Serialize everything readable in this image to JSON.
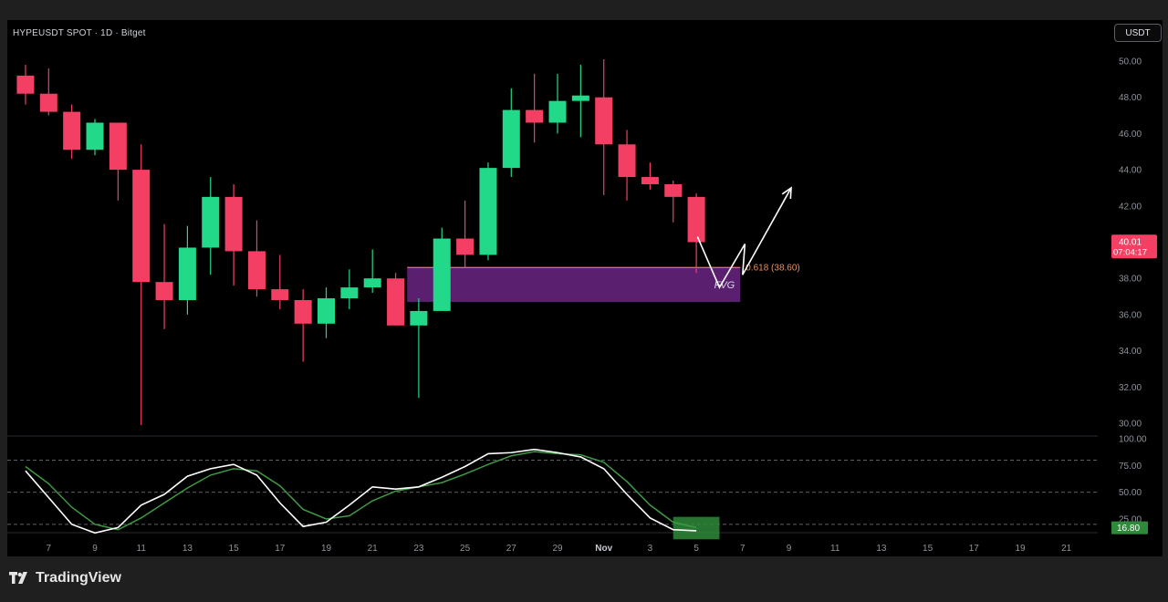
{
  "header": {
    "symbol": "HYPEUSDT SPOT · 1D · Bitget",
    "currency": "USDT"
  },
  "brand": {
    "name": "TradingView",
    "logo_icon": "tradingview-logo-icon"
  },
  "colors": {
    "up": "#22d989",
    "down": "#f23f63",
    "fvg_fill": "#5a1f6e",
    "fib_line": "#f0606e",
    "fib_label": "#e89060",
    "stoch_k": "#ffffff",
    "stoch_d": "#3e9a44",
    "stoch_box": "#2e8a3a"
  },
  "chart_data": {
    "type": "candlestick",
    "price_axis": {
      "ticks": [
        "50.00",
        "48.00",
        "46.00",
        "44.00",
        "42.00",
        "40.00",
        "38.00",
        "36.00",
        "34.00",
        "32.00",
        "30.00"
      ],
      "range": [
        29.3,
        51.2
      ]
    },
    "time_axis": {
      "ticks": [
        "7",
        "9",
        "11",
        "13",
        "15",
        "17",
        "19",
        "21",
        "23",
        "25",
        "27",
        "29",
        "Nov",
        "3",
        "5",
        "7",
        "9",
        "11",
        "13",
        "15",
        "17",
        "19",
        "21"
      ]
    },
    "candles": [
      {
        "day": 6,
        "o": 49.2,
        "h": 49.8,
        "l": 47.6,
        "c": 48.2
      },
      {
        "day": 7,
        "o": 48.2,
        "h": 49.6,
        "l": 47.0,
        "c": 47.2
      },
      {
        "day": 8,
        "o": 47.2,
        "h": 47.6,
        "l": 44.6,
        "c": 45.1
      },
      {
        "day": 9,
        "o": 45.1,
        "h": 46.8,
        "l": 44.8,
        "c": 46.6
      },
      {
        "day": 10,
        "o": 46.6,
        "h": 46.6,
        "l": 42.3,
        "c": 44.0
      },
      {
        "day": 11,
        "o": 44.0,
        "h": 45.4,
        "l": 29.9,
        "c": 37.8
      },
      {
        "day": 12,
        "o": 37.8,
        "h": 41.0,
        "l": 35.2,
        "c": 36.8
      },
      {
        "day": 13,
        "o": 36.8,
        "h": 40.9,
        "l": 36.0,
        "c": 39.7
      },
      {
        "day": 14,
        "o": 39.7,
        "h": 43.6,
        "l": 38.2,
        "c": 42.5
      },
      {
        "day": 15,
        "o": 42.5,
        "h": 43.2,
        "l": 37.6,
        "c": 39.5
      },
      {
        "day": 16,
        "o": 39.5,
        "h": 41.2,
        "l": 37.0,
        "c": 37.4
      },
      {
        "day": 17,
        "o": 37.4,
        "h": 39.3,
        "l": 36.3,
        "c": 36.8
      },
      {
        "day": 18,
        "o": 36.8,
        "h": 37.4,
        "l": 33.4,
        "c": 35.5
      },
      {
        "day": 19,
        "o": 35.5,
        "h": 37.5,
        "l": 34.7,
        "c": 36.9
      },
      {
        "day": 20,
        "o": 36.9,
        "h": 38.5,
        "l": 36.3,
        "c": 37.5
      },
      {
        "day": 21,
        "o": 37.5,
        "h": 39.6,
        "l": 37.2,
        "c": 38.0
      },
      {
        "day": 22,
        "o": 38.0,
        "h": 38.3,
        "l": 35.4,
        "c": 35.4
      },
      {
        "day": 23,
        "o": 35.4,
        "h": 36.9,
        "l": 31.4,
        "c": 36.2
      },
      {
        "day": 24,
        "o": 36.2,
        "h": 40.8,
        "l": 36.2,
        "c": 40.2
      },
      {
        "day": 25,
        "o": 40.2,
        "h": 42.3,
        "l": 38.6,
        "c": 39.3
      },
      {
        "day": 26,
        "o": 39.3,
        "h": 44.4,
        "l": 39.0,
        "c": 44.1
      },
      {
        "day": 27,
        "o": 44.1,
        "h": 48.5,
        "l": 43.6,
        "c": 47.3
      },
      {
        "day": 28,
        "o": 47.3,
        "h": 49.3,
        "l": 45.5,
        "c": 46.6
      },
      {
        "day": 29,
        "o": 46.6,
        "h": 49.3,
        "l": 46.0,
        "c": 47.8
      },
      {
        "day": 30,
        "o": 47.8,
        "h": 49.8,
        "l": 45.8,
        "c": 48.1
      },
      {
        "day": 31,
        "o": 48.0,
        "h": 50.1,
        "l": 42.6,
        "c": 45.4
      },
      {
        "day": 32,
        "o": 45.4,
        "h": 46.2,
        "l": 42.3,
        "c": 43.6
      },
      {
        "day": 33,
        "o": 43.6,
        "h": 44.4,
        "l": 42.9,
        "c": 43.2
      },
      {
        "day": 34,
        "o": 43.2,
        "h": 43.4,
        "l": 41.1,
        "c": 42.5
      },
      {
        "day": 35,
        "o": 42.5,
        "h": 42.7,
        "l": 38.3,
        "c": 40.0
      }
    ],
    "fvg": {
      "label": "FVG",
      "top": 38.6,
      "bottom": 36.7,
      "from_day": 22.5,
      "to_day": 36.9
    },
    "fib": {
      "label": "0.618 (38.60)",
      "value": 38.6
    },
    "last_price": {
      "value": "40.01",
      "countdown": "07:04:17"
    },
    "projection": [
      {
        "day": 35.05,
        "price": 40.3
      },
      {
        "day": 36.0,
        "price": 37.5
      },
      {
        "day": 37.1,
        "price": 39.9
      },
      {
        "day": 37.0,
        "price": 38.2
      },
      {
        "day": 39.1,
        "price": 43.0
      }
    ],
    "oscillator": {
      "ticks": [
        "100.00",
        "75.00",
        "50.00",
        "25.00"
      ],
      "range": [
        0,
        100
      ],
      "dashed_levels": [
        80,
        50,
        20
      ],
      "k": [
        [
          6,
          70
        ],
        [
          7,
          45
        ],
        [
          8,
          20
        ],
        [
          9,
          12
        ],
        [
          10,
          17
        ],
        [
          11,
          38
        ],
        [
          12,
          48
        ],
        [
          13,
          65
        ],
        [
          14,
          72
        ],
        [
          15,
          76
        ],
        [
          16,
          66
        ],
        [
          17,
          40
        ],
        [
          18,
          18
        ],
        [
          19,
          22
        ],
        [
          20,
          38
        ],
        [
          21,
          55
        ],
        [
          22,
          53
        ],
        [
          23,
          55
        ],
        [
          24,
          64
        ],
        [
          25,
          74
        ],
        [
          26,
          86
        ],
        [
          27,
          87
        ],
        [
          28,
          90
        ],
        [
          29,
          87
        ],
        [
          30,
          83
        ],
        [
          31,
          72
        ],
        [
          32,
          48
        ],
        [
          33,
          26
        ],
        [
          34,
          15
        ],
        [
          35,
          14
        ]
      ],
      "d": [
        [
          6,
          74
        ],
        [
          7,
          58
        ],
        [
          8,
          36
        ],
        [
          9,
          20
        ],
        [
          10,
          15
        ],
        [
          11,
          26
        ],
        [
          12,
          40
        ],
        [
          13,
          54
        ],
        [
          14,
          66
        ],
        [
          15,
          72
        ],
        [
          16,
          70
        ],
        [
          17,
          56
        ],
        [
          18,
          34
        ],
        [
          19,
          25
        ],
        [
          20,
          28
        ],
        [
          21,
          42
        ],
        [
          22,
          51
        ],
        [
          23,
          55
        ],
        [
          24,
          59
        ],
        [
          25,
          67
        ],
        [
          26,
          76
        ],
        [
          27,
          84
        ],
        [
          28,
          88
        ],
        [
          29,
          86
        ],
        [
          30,
          85
        ],
        [
          31,
          78
        ],
        [
          32,
          60
        ],
        [
          33,
          38
        ],
        [
          34,
          22
        ],
        [
          35,
          17
        ]
      ],
      "value": "16.80",
      "zone": {
        "from_day": 34.0,
        "to_day": 36.0,
        "low": 6,
        "high": 27
      }
    }
  }
}
